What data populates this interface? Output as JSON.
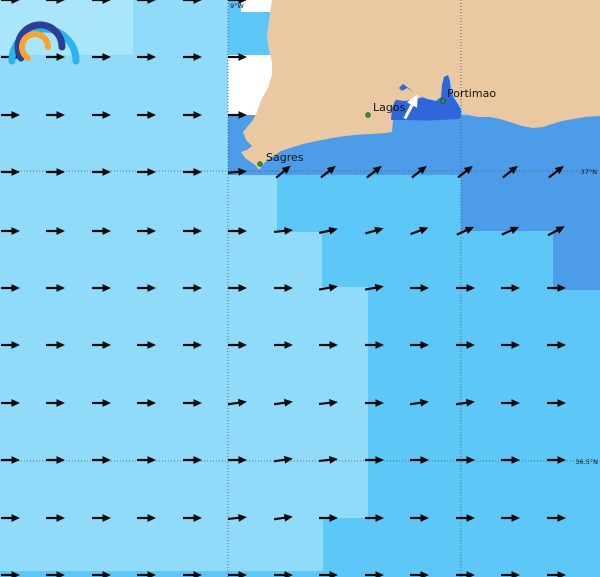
{
  "map": {
    "app": "wind-forecast-map",
    "colors": {
      "bandA": "#a9e6fb",
      "bandB": "#90dbf9",
      "bandC": "#5dc8f8",
      "bandD": "#4c9ce9",
      "bandE": "#2f66d9",
      "land": "#eac9a2",
      "white": "#ffffff",
      "grid": "#4d4d4d",
      "arrow": "#0a0a0a",
      "arrow_white": "#ffffff",
      "label": "#111111",
      "dot": "#2f9e2f",
      "dot_edge": "#14571a",
      "logo_outer": "#29b4ec",
      "logo_mid": "#2c3e96",
      "logo_inner": "#f7a52e"
    },
    "cities": [
      {
        "name": "Sagres"
      },
      {
        "name": "Lagos"
      },
      {
        "name": "Portimao"
      }
    ],
    "coord_labels": [
      {
        "text": "9°W"
      },
      {
        "text": "37°N"
      },
      {
        "text": "36.5°N"
      }
    ],
    "arrows": [
      [
        10,
        0,
        0
      ],
      [
        55,
        0,
        0
      ],
      [
        101,
        0,
        0
      ],
      [
        146,
        0,
        0
      ],
      [
        192,
        0,
        0
      ],
      [
        237,
        0,
        0
      ],
      [
        10,
        57,
        0
      ],
      [
        55,
        57,
        0
      ],
      [
        101,
        57,
        0
      ],
      [
        146,
        57,
        0
      ],
      [
        192,
        57,
        0
      ],
      [
        237,
        57,
        0
      ],
      [
        10,
        115,
        0
      ],
      [
        55,
        115,
        0
      ],
      [
        101,
        115,
        0
      ],
      [
        146,
        115,
        0
      ],
      [
        192,
        115,
        0
      ],
      [
        237,
        115,
        0
      ],
      [
        411,
        107,
        -62,
        1
      ],
      [
        10,
        172,
        0
      ],
      [
        55,
        172,
        0
      ],
      [
        101,
        172,
        0
      ],
      [
        146,
        172,
        0
      ],
      [
        192,
        172,
        0
      ],
      [
        237,
        172,
        -5
      ],
      [
        283,
        172,
        -40
      ],
      [
        328,
        172,
        -38
      ],
      [
        374,
        172,
        -38
      ],
      [
        419,
        172,
        -38
      ],
      [
        465,
        172,
        -38
      ],
      [
        510,
        172,
        -38
      ],
      [
        556,
        172,
        -38
      ],
      [
        10,
        231,
        0
      ],
      [
        55,
        231,
        0
      ],
      [
        101,
        231,
        0
      ],
      [
        146,
        231,
        0
      ],
      [
        192,
        231,
        0
      ],
      [
        237,
        231,
        0
      ],
      [
        283,
        231,
        -6
      ],
      [
        328,
        231,
        -12
      ],
      [
        374,
        231,
        -16
      ],
      [
        419,
        231,
        -20
      ],
      [
        465,
        231,
        -24
      ],
      [
        510,
        231,
        -24
      ],
      [
        556,
        231,
        -28
      ],
      [
        10,
        288,
        0
      ],
      [
        55,
        288,
        0
      ],
      [
        101,
        288,
        0
      ],
      [
        146,
        288,
        0
      ],
      [
        192,
        288,
        0
      ],
      [
        237,
        288,
        0
      ],
      [
        283,
        288,
        0
      ],
      [
        328,
        288,
        -10
      ],
      [
        374,
        288,
        -10
      ],
      [
        419,
        288,
        0
      ],
      [
        465,
        288,
        0
      ],
      [
        510,
        288,
        0
      ],
      [
        556,
        288,
        0
      ],
      [
        10,
        345,
        0
      ],
      [
        55,
        345,
        0
      ],
      [
        101,
        345,
        0
      ],
      [
        146,
        345,
        0
      ],
      [
        192,
        345,
        0
      ],
      [
        237,
        345,
        0
      ],
      [
        283,
        345,
        0
      ],
      [
        328,
        345,
        0
      ],
      [
        374,
        345,
        0
      ],
      [
        419,
        345,
        0
      ],
      [
        465,
        345,
        0
      ],
      [
        510,
        345,
        0
      ],
      [
        556,
        345,
        0
      ],
      [
        10,
        403,
        0
      ],
      [
        55,
        403,
        0
      ],
      [
        101,
        403,
        0
      ],
      [
        146,
        403,
        0
      ],
      [
        192,
        403,
        0
      ],
      [
        237,
        403,
        -8
      ],
      [
        283,
        403,
        -8
      ],
      [
        328,
        403,
        -6
      ],
      [
        374,
        403,
        0
      ],
      [
        419,
        403,
        -8
      ],
      [
        465,
        403,
        -8
      ],
      [
        510,
        403,
        0
      ],
      [
        556,
        403,
        0
      ],
      [
        10,
        460,
        0
      ],
      [
        55,
        460,
        0
      ],
      [
        101,
        460,
        0
      ],
      [
        146,
        460,
        0
      ],
      [
        192,
        460,
        0
      ],
      [
        237,
        460,
        0
      ],
      [
        283,
        460,
        -8
      ],
      [
        328,
        460,
        -6
      ],
      [
        374,
        460,
        0
      ],
      [
        419,
        460,
        0
      ],
      [
        465,
        460,
        0
      ],
      [
        510,
        460,
        0
      ],
      [
        556,
        460,
        0
      ],
      [
        10,
        518,
        0
      ],
      [
        55,
        518,
        0
      ],
      [
        101,
        518,
        0
      ],
      [
        146,
        518,
        0
      ],
      [
        192,
        518,
        0
      ],
      [
        237,
        518,
        -6
      ],
      [
        283,
        518,
        -8
      ],
      [
        328,
        518,
        0
      ],
      [
        374,
        518,
        0
      ],
      [
        419,
        518,
        0
      ],
      [
        465,
        518,
        0
      ],
      [
        510,
        518,
        0
      ],
      [
        556,
        518,
        0
      ],
      [
        10,
        575,
        0
      ],
      [
        55,
        575,
        0
      ],
      [
        101,
        575,
        0
      ],
      [
        146,
        575,
        0
      ],
      [
        192,
        575,
        0
      ],
      [
        237,
        575,
        0
      ],
      [
        283,
        575,
        0
      ],
      [
        328,
        575,
        0
      ],
      [
        374,
        575,
        0
      ],
      [
        419,
        575,
        0
      ],
      [
        465,
        575,
        0
      ],
      [
        510,
        575,
        0
      ],
      [
        556,
        575,
        0
      ]
    ]
  }
}
